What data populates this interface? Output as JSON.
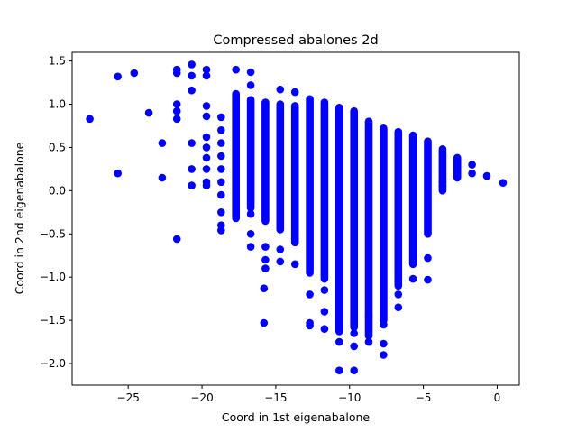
{
  "chart_data": {
    "type": "scatter",
    "title": "Compressed abalones 2d",
    "xlabel": "Coord in 1st eigenabalone",
    "ylabel": "Coord in 2nd eigenabalone",
    "xlim": [
      -28.8,
      1.5
    ],
    "ylim": [
      -2.25,
      1.6
    ],
    "xticks": [
      -25,
      -20,
      -15,
      -10,
      -5,
      0
    ],
    "yticks": [
      -2.0,
      -1.5,
      -1.0,
      -0.5,
      0.0,
      0.5,
      1.0,
      1.5
    ],
    "xtick_labels": [
      "−25",
      "−20",
      "−15",
      "−10",
      "−5",
      "0"
    ],
    "ytick_labels": [
      "−2.0",
      "−1.5",
      "−1.0",
      "−0.5",
      "0.0",
      "0.5",
      "1.0",
      "1.5"
    ],
    "grid": false,
    "marker_color": "#0000ff",
    "points": [
      {
        "x": -27.6,
        "y": 0.83
      },
      {
        "x": -25.7,
        "y": 1.32
      },
      {
        "x": -25.7,
        "y": 0.2
      },
      {
        "x": -24.6,
        "y": 1.36
      },
      {
        "x": -23.6,
        "y": 0.9
      },
      {
        "x": -22.7,
        "y": 0.55
      },
      {
        "x": -22.7,
        "y": 0.15
      },
      {
        "x": -21.7,
        "y": 1.4
      },
      {
        "x": -21.7,
        "y": 1.36
      },
      {
        "x": -21.7,
        "y": 1.0
      },
      {
        "x": -21.7,
        "y": 0.92
      },
      {
        "x": -21.7,
        "y": 0.83
      },
      {
        "x": -21.7,
        "y": -0.56
      },
      {
        "x": -20.7,
        "y": 1.46
      },
      {
        "x": -20.7,
        "y": 1.33
      },
      {
        "x": -20.7,
        "y": 1.16
      },
      {
        "x": -20.7,
        "y": 0.55
      },
      {
        "x": -20.7,
        "y": 0.25
      },
      {
        "x": -20.7,
        "y": 0.06
      },
      {
        "x": -19.7,
        "y": 1.4
      },
      {
        "x": -19.7,
        "y": 1.33
      },
      {
        "x": -19.7,
        "y": 0.98
      },
      {
        "x": -19.7,
        "y": 0.86
      },
      {
        "x": -19.7,
        "y": 0.62
      },
      {
        "x": -19.7,
        "y": 0.5
      },
      {
        "x": -19.7,
        "y": 0.38
      },
      {
        "x": -19.7,
        "y": 0.25
      },
      {
        "x": -19.7,
        "y": 0.1
      },
      {
        "x": -19.7,
        "y": 0.06
      },
      {
        "x": -18.7,
        "y": 0.85
      },
      {
        "x": -18.7,
        "y": 0.7
      },
      {
        "x": -18.7,
        "y": 0.55
      },
      {
        "x": -18.7,
        "y": 0.4
      },
      {
        "x": -18.7,
        "y": 0.25
      },
      {
        "x": -18.7,
        "y": 0.1
      },
      {
        "x": -18.7,
        "y": -0.05
      },
      {
        "x": -18.7,
        "y": -0.25
      },
      {
        "x": -18.7,
        "y": -0.4
      },
      {
        "x": -18.7,
        "y": -0.46
      },
      {
        "x": -17.7,
        "y": 1.4
      },
      {
        "x": -16.7,
        "y": 1.37
      },
      {
        "x": -16.7,
        "y": 1.22
      },
      {
        "x": -16.7,
        "y": -0.27
      },
      {
        "x": -16.7,
        "y": -0.5
      },
      {
        "x": -16.7,
        "y": -0.65
      },
      {
        "x": -15.8,
        "y": -1.13
      },
      {
        "x": -15.8,
        "y": -1.53
      },
      {
        "x": -15.7,
        "y": -0.65
      },
      {
        "x": -15.7,
        "y": -0.8
      },
      {
        "x": -15.7,
        "y": -0.9
      },
      {
        "x": -14.7,
        "y": 1.17
      },
      {
        "x": -14.7,
        "y": -0.68
      },
      {
        "x": -14.7,
        "y": -0.82
      },
      {
        "x": -13.7,
        "y": 1.14
      },
      {
        "x": -13.7,
        "y": -0.85
      },
      {
        "x": -13.7,
        "y": -0.55
      },
      {
        "x": -12.7,
        "y": -1.2
      },
      {
        "x": -12.7,
        "y": -1.53
      },
      {
        "x": -12.7,
        "y": -1.56
      },
      {
        "x": -11.7,
        "y": -1.15
      },
      {
        "x": -11.7,
        "y": -1.4
      },
      {
        "x": -11.7,
        "y": -1.6
      },
      {
        "x": -10.7,
        "y": -1.5
      },
      {
        "x": -10.7,
        "y": -1.75
      },
      {
        "x": -10.7,
        "y": -2.08
      },
      {
        "x": -9.7,
        "y": -1.5
      },
      {
        "x": -9.7,
        "y": -1.65
      },
      {
        "x": -9.7,
        "y": -1.8
      },
      {
        "x": -9.7,
        "y": -2.08
      },
      {
        "x": -8.7,
        "y": -1.45
      },
      {
        "x": -8.7,
        "y": -1.75
      },
      {
        "x": -7.7,
        "y": -1.55
      },
      {
        "x": -7.7,
        "y": -1.77
      },
      {
        "x": -7.7,
        "y": -1.9
      },
      {
        "x": -6.7,
        "y": -1.2
      },
      {
        "x": -6.7,
        "y": -1.35
      },
      {
        "x": -5.7,
        "y": -1.02
      },
      {
        "x": -4.7,
        "y": -0.78
      },
      {
        "x": -4.7,
        "y": -1.03
      },
      {
        "x": -3.7,
        "y": 0.1
      },
      {
        "x": -3.7,
        "y": 0.05
      },
      {
        "x": -1.7,
        "y": 0.3
      },
      {
        "x": -1.7,
        "y": 0.2
      },
      {
        "x": -0.7,
        "y": 0.17
      },
      {
        "x": 0.4,
        "y": 0.09
      }
    ],
    "columns": [
      {
        "x": -17.7,
        "y_min": -0.32,
        "y_max": 1.12
      },
      {
        "x": -16.7,
        "y_min": -0.2,
        "y_max": 1.05
      },
      {
        "x": -15.7,
        "y_min": -0.35,
        "y_max": 1.02
      },
      {
        "x": -14.7,
        "y_min": -0.45,
        "y_max": 1.0
      },
      {
        "x": -13.7,
        "y_min": -0.6,
        "y_max": 0.98
      },
      {
        "x": -12.7,
        "y_min": -0.95,
        "y_max": 1.06
      },
      {
        "x": -11.7,
        "y_min": -1.02,
        "y_max": 1.02
      },
      {
        "x": -10.7,
        "y_min": -1.63,
        "y_max": 0.96
      },
      {
        "x": -9.7,
        "y_min": -1.58,
        "y_max": 0.92
      },
      {
        "x": -8.7,
        "y_min": -1.68,
        "y_max": 0.8
      },
      {
        "x": -7.7,
        "y_min": -1.5,
        "y_max": 0.72
      },
      {
        "x": -6.7,
        "y_min": -1.1,
        "y_max": 0.68
      },
      {
        "x": -5.7,
        "y_min": -0.85,
        "y_max": 0.64
      },
      {
        "x": -4.7,
        "y_min": -0.5,
        "y_max": 0.57
      },
      {
        "x": -3.7,
        "y_min": 0.0,
        "y_max": 0.48
      },
      {
        "x": -2.7,
        "y_min": 0.15,
        "y_max": 0.38
      }
    ]
  }
}
